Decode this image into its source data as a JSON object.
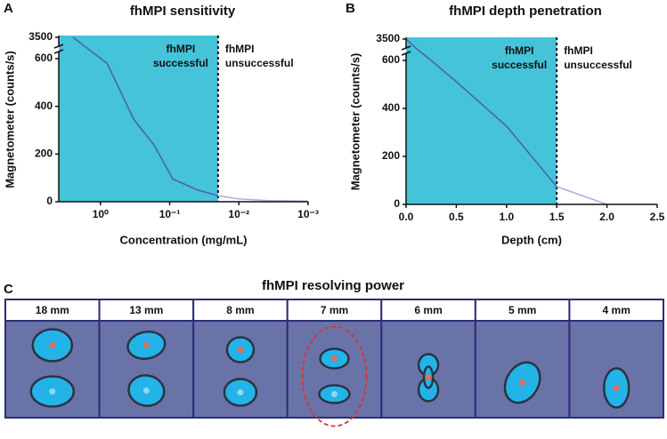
{
  "chart_data": [
    {
      "panel_label": "A",
      "type": "line",
      "title": "fhMPI sensitivity",
      "x_label": "Concentration (mg/mL)",
      "y_label": "Magnetometer (counts/s)",
      "xscale": "log",
      "x_reversed": true,
      "xlim": [
        4,
        0.001
      ],
      "xticks": [
        {
          "value": 1,
          "label": "10⁰"
        },
        {
          "value": 0.1,
          "label": "10⁻¹"
        },
        {
          "value": 0.01,
          "label": "10⁻²"
        },
        {
          "value": 0.001,
          "label": "10⁻³"
        }
      ],
      "ylim": [
        0,
        3500
      ],
      "y_break": 600,
      "yticks": [
        0,
        200,
        400,
        600,
        3500
      ],
      "threshold": 0.02,
      "shade_color": "#45c3d9",
      "annotations": [
        {
          "lines": [
            "fhMPI",
            "successful"
          ]
        },
        {
          "lines": [
            "fhMPI",
            "unsuccessful"
          ]
        }
      ],
      "series": [
        {
          "color": "#4a63b5",
          "x": [
            2.5,
            1.0,
            0.8,
            0.33,
            0.17,
            0.09,
            0.04,
            0.02
          ],
          "values": [
            3500,
            640,
            580,
            345,
            240,
            95,
            50,
            25
          ]
        },
        {
          "color": "#a9b3e3",
          "x": [
            0.02,
            0.01,
            0.004,
            0.001
          ],
          "values": [
            25,
            12,
            5,
            2
          ]
        }
      ]
    },
    {
      "panel_label": "B",
      "type": "line",
      "title": "fhMPI depth penetration",
      "x_label": "Depth (cm)",
      "y_label": "Magnetometer (counts/s)",
      "xscale": "linear",
      "x_reversed": false,
      "xlim": [
        0,
        2.5
      ],
      "xticks": [
        {
          "value": 0,
          "label": "0.0"
        },
        {
          "value": 0.5,
          "label": "0.5"
        },
        {
          "value": 1,
          "label": "1.0"
        },
        {
          "value": 1.5,
          "label": "1.5"
        },
        {
          "value": 2,
          "label": "2.0"
        },
        {
          "value": 2.5,
          "label": "2.5"
        }
      ],
      "ylim": [
        0,
        3500
      ],
      "y_break": 600,
      "yticks": [
        0,
        200,
        400,
        600,
        3500
      ],
      "threshold": 1.5,
      "shade_color": "#45c3d9",
      "annotations": [
        {
          "lines": [
            "fhMPI",
            "successful"
          ]
        },
        {
          "lines": [
            "fhMPI",
            "unsuccessful"
          ]
        }
      ],
      "series": [
        {
          "color": "#4a63b5",
          "x": [
            0,
            0.12,
            0.25,
            0.5,
            1.0,
            1.5
          ],
          "values": [
            3500,
            2000,
            600,
            511,
            326,
            74
          ]
        },
        {
          "color": "#a9b3e3",
          "x": [
            1.5,
            2.0
          ],
          "values": [
            74,
            0
          ]
        }
      ]
    }
  ],
  "resolving_power": {
    "panel_label": "C",
    "title": "fhMPI resolving power",
    "columns": [
      "18 mm",
      "13 mm",
      "8 mm",
      "7 mm",
      "6 mm",
      "5 mm",
      "4 mm"
    ]
  }
}
